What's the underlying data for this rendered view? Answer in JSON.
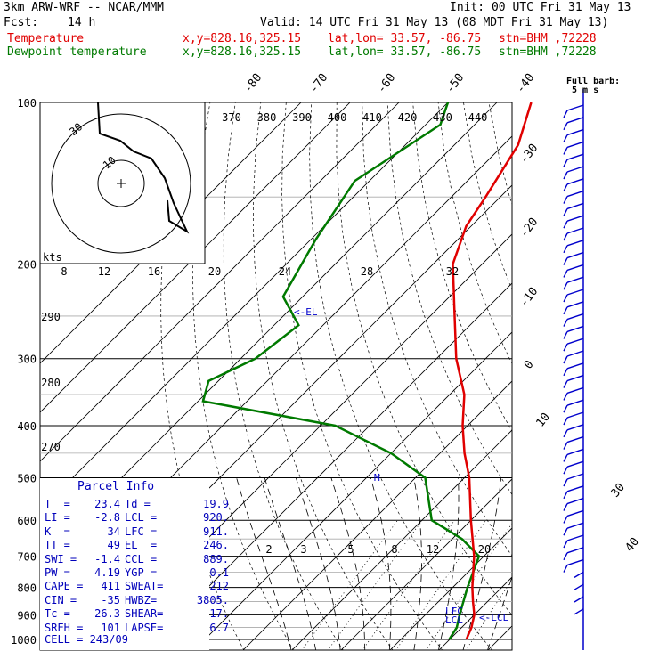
{
  "header": {
    "model": "3km ARW-WRF -- NCAR/MMM",
    "init": "Init: 00 UTC Fri 31 May 13",
    "fcst_label": "Fcst:",
    "fcst_hours": "14 h",
    "valid": "Valid: 14 UTC Fri 31 May 13 (08 MDT Fri 31 May 13)",
    "temp_label": "Temperature",
    "dew_label": "Dewpoint temperature",
    "location_xy": "x,y=828.16,325.15",
    "location_latlon": "lat,lon= 33.57, -86.75",
    "station": "stn=BHM ,72228"
  },
  "full_barb_label": "Full barb:",
  "full_barb_value": "5 m s",
  "hodograph_units": "kts",
  "hodograph_rings": [
    "30",
    "10"
  ],
  "parcel_info": {
    "title": "Parcel Info",
    "rows": [
      [
        "T  =",
        "23.4",
        "Td =",
        "19.9"
      ],
      [
        "LI =",
        "-2.8",
        "LCL =",
        "920."
      ],
      [
        "K  =",
        "34",
        "LFC =",
        "911."
      ],
      [
        "TT =",
        "49",
        "EL  =",
        "246."
      ],
      [
        "SWI =",
        "-1.4",
        "CCL =",
        "889."
      ],
      [
        "PW =",
        "4.19",
        "YGP =",
        "0.1"
      ],
      [
        "CAPE =",
        "411",
        "SWEAT=",
        "212"
      ],
      [
        "CIN =",
        "-35",
        "HWBZ=",
        "3805."
      ],
      [
        "Tc =",
        "26.3",
        "SHEAR=",
        "17."
      ],
      [
        "SREH =",
        "101",
        "LAPSE=",
        "6.7"
      ]
    ],
    "cell": "CELL = 243/09"
  },
  "level_markers": {
    "el": "<-EL",
    "lcl": "<-LCL",
    "lfc_ccl": "LFC",
    "lcl2": "LCL",
    "mark": "M"
  },
  "colors": {
    "temperature": "#e00000",
    "dewpoint": "#007a00",
    "barbs": "#0000cc",
    "grid": "#000000"
  },
  "chart_data": {
    "type": "line",
    "subtype": "skew-t log-p sounding",
    "pressure_levels": [
      100,
      200,
      300,
      400,
      500,
      600,
      700,
      800,
      900,
      1000
    ],
    "pressure_tick_labels": [
      "100",
      "200",
      "300",
      "400",
      "500",
      "600",
      "700",
      "800",
      "900",
      "1000"
    ],
    "isotherm_labels": [
      "-80",
      "-70",
      "-60",
      "-50",
      "-40",
      "-30",
      "-20",
      "-10",
      "0",
      "10",
      "30",
      "40"
    ],
    "theta_labels": [
      "370",
      "380",
      "390",
      "400",
      "410",
      "420",
      "430",
      "440"
    ],
    "dry_adiabat_labels": [
      "290",
      "280",
      "270"
    ],
    "mixing_ratio_labels": [
      "2",
      "3",
      "5",
      "8",
      "12",
      "20"
    ],
    "wetbulb_labels": [
      "8",
      "12",
      "16",
      "20",
      "24",
      "28",
      "32"
    ],
    "temperature": {
      "name": "Temperature",
      "points": [
        {
          "p": 100,
          "t": -73
        },
        {
          "p": 120,
          "t": -67
        },
        {
          "p": 150,
          "t": -63
        },
        {
          "p": 170,
          "t": -61
        },
        {
          "p": 200,
          "t": -56
        },
        {
          "p": 250,
          "t": -45
        },
        {
          "p": 300,
          "t": -36
        },
        {
          "p": 350,
          "t": -27
        },
        {
          "p": 400,
          "t": -21
        },
        {
          "p": 450,
          "t": -15
        },
        {
          "p": 500,
          "t": -9
        },
        {
          "p": 600,
          "t": 0
        },
        {
          "p": 700,
          "t": 8
        },
        {
          "p": 800,
          "t": 14
        },
        {
          "p": 850,
          "t": 17
        },
        {
          "p": 900,
          "t": 20
        },
        {
          "p": 950,
          "t": 22
        },
        {
          "p": 1000,
          "t": 23.4
        }
      ]
    },
    "dewpoint": {
      "name": "Dewpoint temperature",
      "points": [
        {
          "p": 100,
          "t": -90
        },
        {
          "p": 110,
          "t": -87
        },
        {
          "p": 140,
          "t": -93
        },
        {
          "p": 180,
          "t": -89
        },
        {
          "p": 230,
          "t": -84
        },
        {
          "p": 260,
          "t": -75
        },
        {
          "p": 300,
          "t": -77
        },
        {
          "p": 330,
          "t": -82
        },
        {
          "p": 360,
          "t": -79
        },
        {
          "p": 400,
          "t": -47
        },
        {
          "p": 450,
          "t": -30
        },
        {
          "p": 500,
          "t": -18
        },
        {
          "p": 600,
          "t": -8
        },
        {
          "p": 650,
          "t": 2
        },
        {
          "p": 700,
          "t": 9
        },
        {
          "p": 800,
          "t": 13
        },
        {
          "p": 900,
          "t": 17
        },
        {
          "p": 950,
          "t": 19
        },
        {
          "p": 1000,
          "t": 19.9
        }
      ]
    },
    "hodograph": {
      "rings_kts": [
        10,
        30
      ],
      "points_kts": [
        [
          4,
          14
        ],
        [
          8,
          26
        ],
        [
          10,
          33
        ],
        [
          12,
          28
        ],
        [
          16,
          15
        ],
        [
          28,
          2
        ],
        [
          34,
          -10
        ],
        [
          42,
          -22
        ],
        [
          40,
          -20
        ],
        [
          38,
          -16
        ]
      ]
    },
    "wind_barbs": {
      "count": 42,
      "direction": "southwesterly aloft, veering to calm near surface"
    },
    "xlim": [
      -40,
      40
    ],
    "ylim": [
      1000,
      100
    ]
  }
}
